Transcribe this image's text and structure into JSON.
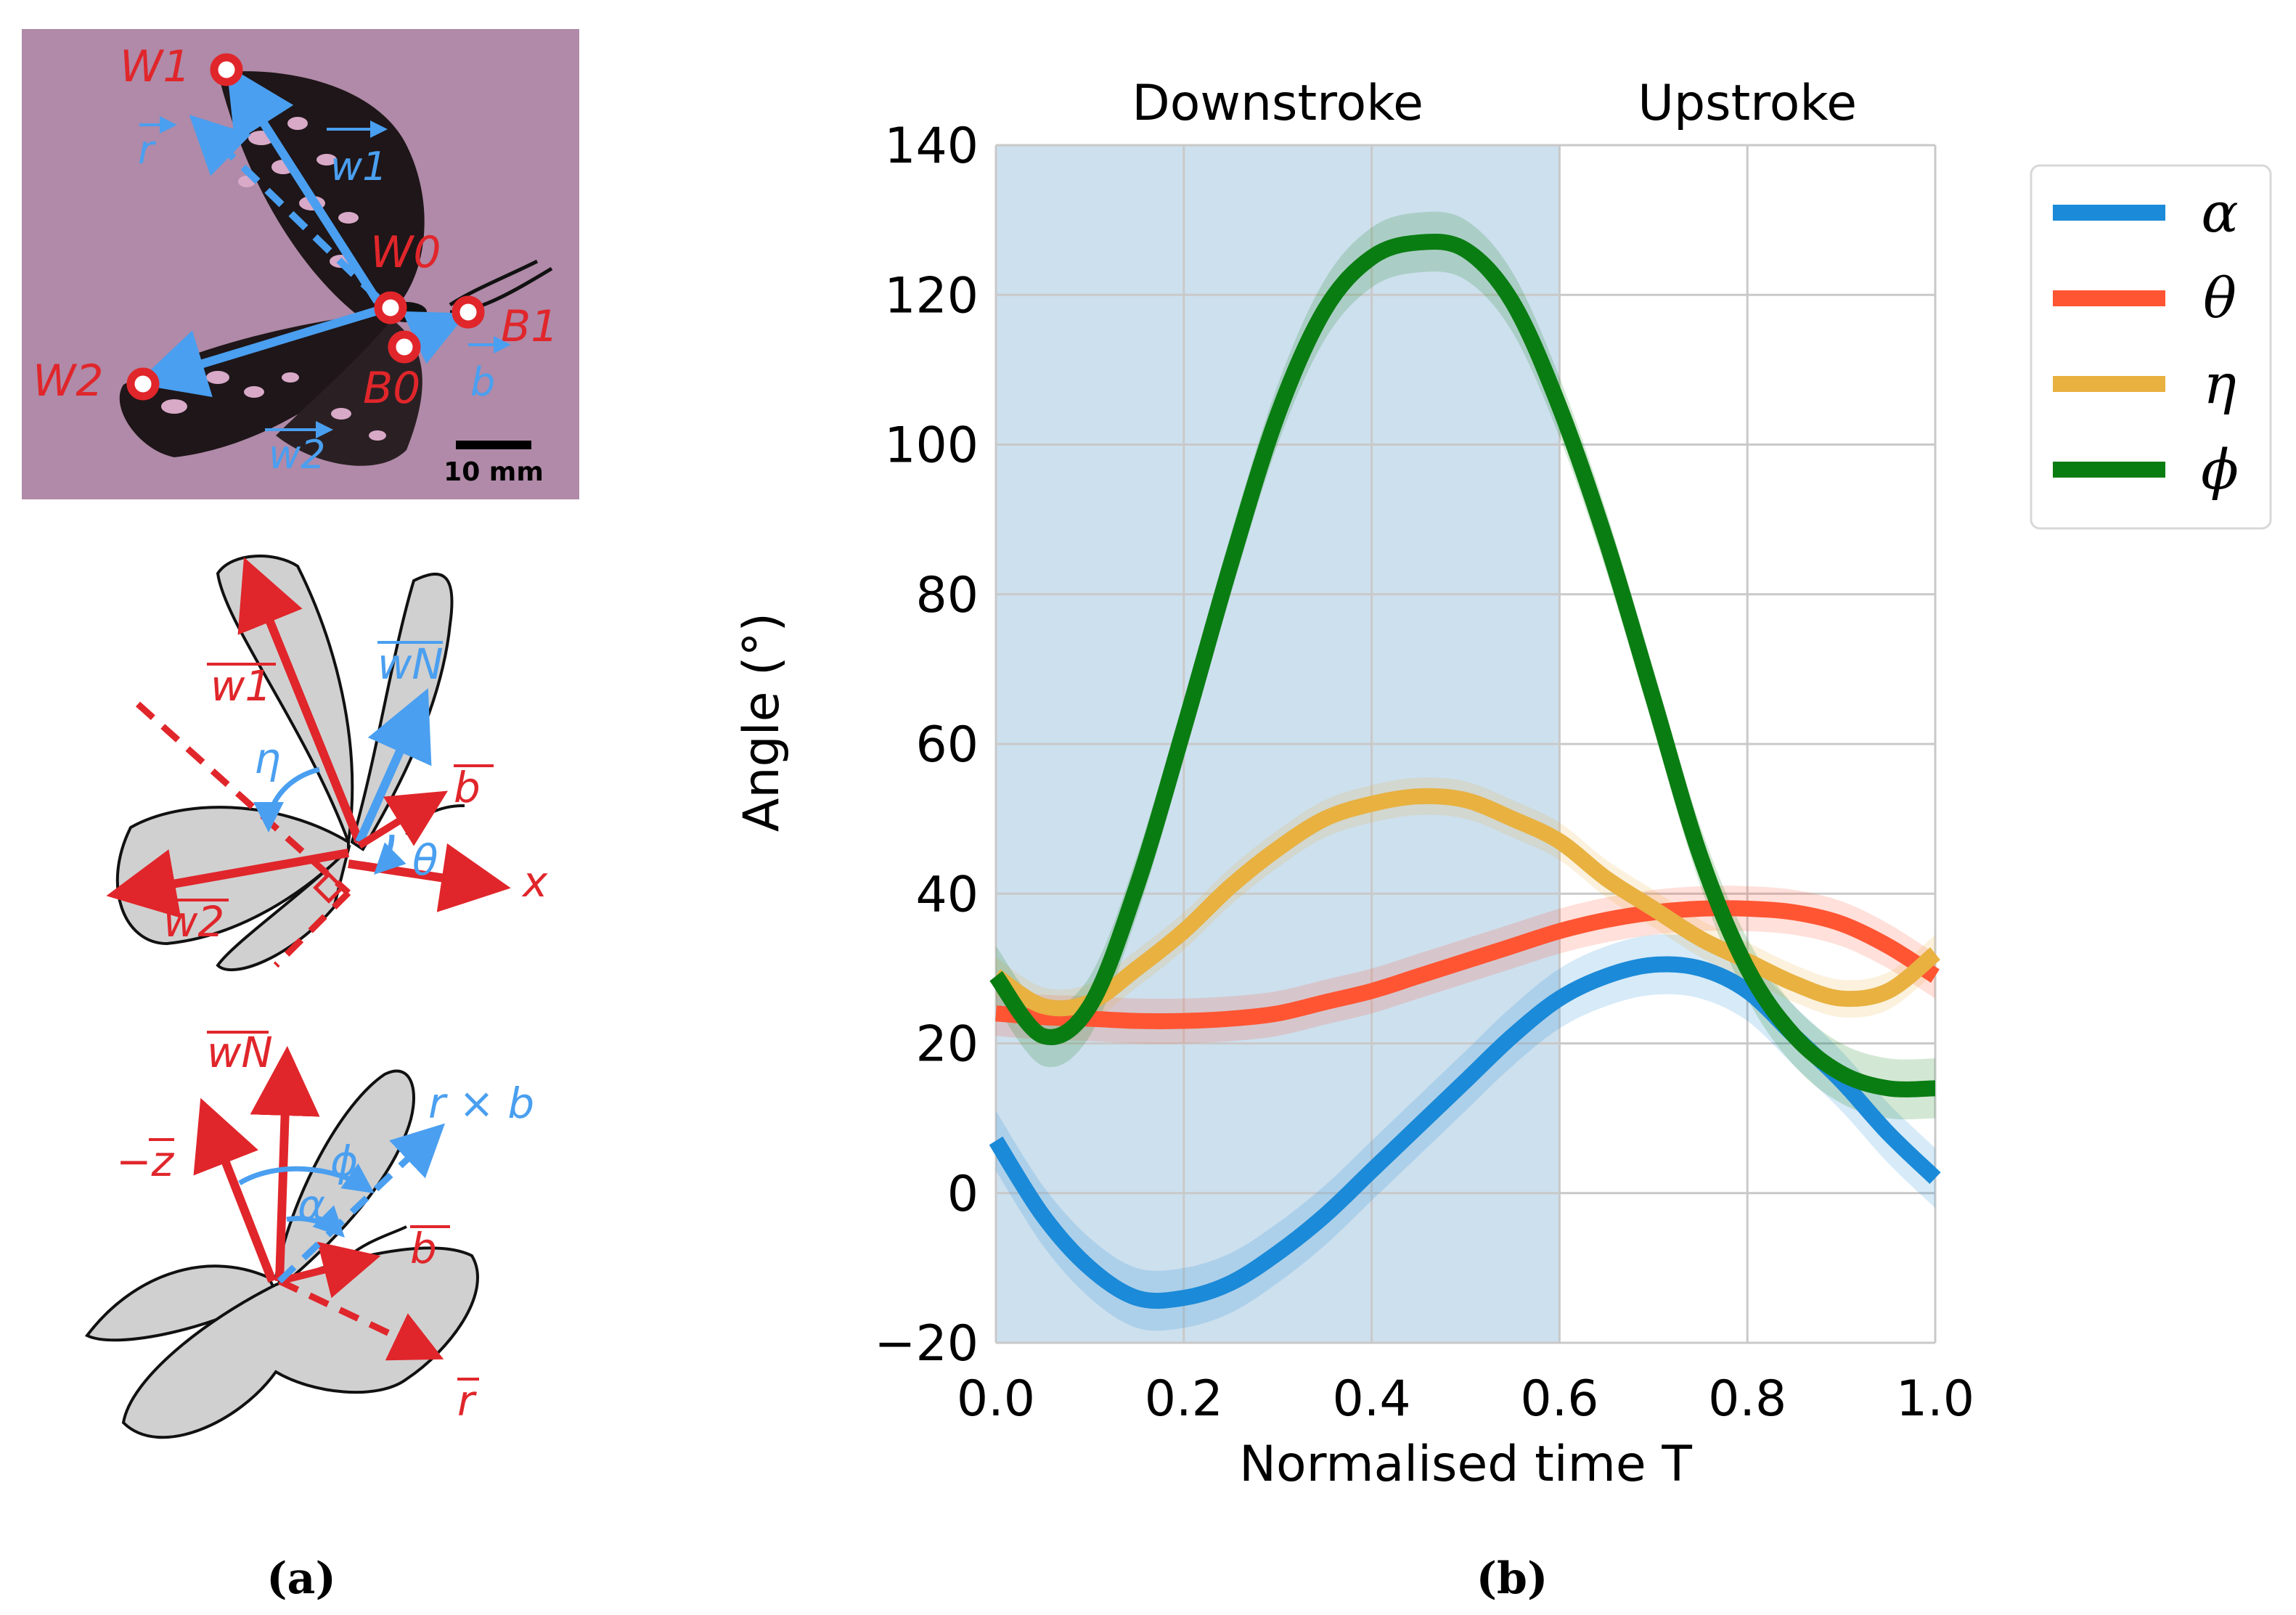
{
  "panel_a": {
    "caption": "(a)",
    "photo": {
      "points": {
        "w1": "W1",
        "w0": "W0",
        "w2": "W2",
        "b0": "B0",
        "b1": "B1"
      },
      "vectors": {
        "r": "r",
        "w1": "w1",
        "w2": "w2",
        "b": "b"
      },
      "scale_bar": "10 mm",
      "bg_color": "#b08aa8"
    },
    "diagram1": {
      "labels": {
        "w1": "w1",
        "wN": "wN",
        "b": "b",
        "w2": "w2",
        "eta": "η",
        "theta": "θ",
        "x": "x"
      }
    },
    "diagram2": {
      "labels": {
        "wN": "wN",
        "minus_z": "−z",
        "r_cross_b": "r × b",
        "phi": "ϕ",
        "alpha": "α",
        "b": "b",
        "r": "r"
      }
    },
    "colors": {
      "red": "#e0262b",
      "blue": "#4a9ff0",
      "wing": "#d0d0d0"
    }
  },
  "panel_b": {
    "caption": "(b)",
    "chart_data": {
      "type": "line",
      "title": "",
      "xlabel": "Normalised time T",
      "ylabel": "Angle (°)",
      "xlim": [
        0.0,
        1.0
      ],
      "ylim": [
        -20,
        140
      ],
      "xticks": [
        "0.0",
        "0.2",
        "0.4",
        "0.6",
        "0.8",
        "1.0"
      ],
      "yticks": [
        "−20",
        "0",
        "20",
        "40",
        "60",
        "80",
        "100",
        "120",
        "140"
      ],
      "grid": true,
      "legend_position": "outside-top-right",
      "phases": [
        {
          "label": "Downstroke",
          "x_start": 0.0,
          "x_end": 0.6,
          "shaded": true,
          "color": "#cde0ee"
        },
        {
          "label": "Upstroke",
          "x_start": 0.6,
          "x_end": 1.0,
          "shaded": false
        }
      ],
      "x": [
        0.0,
        0.05,
        0.1,
        0.15,
        0.2,
        0.25,
        0.3,
        0.35,
        0.4,
        0.45,
        0.5,
        0.55,
        0.6,
        0.65,
        0.7,
        0.75,
        0.8,
        0.85,
        0.9,
        0.95,
        1.0
      ],
      "series": [
        {
          "name": "α",
          "color": "#1b8ad8",
          "band": 4,
          "values": [
            7,
            -3,
            -10,
            -14,
            -14,
            -12,
            -8,
            -3,
            3,
            9,
            15,
            21,
            26,
            29,
            30.5,
            30,
            27,
            21,
            15,
            8,
            2
          ]
        },
        {
          "name": "θ",
          "color": "#ff5533",
          "band": 3,
          "values": [
            24,
            23.5,
            23.3,
            23,
            23,
            23.3,
            24,
            25.5,
            27,
            29,
            31,
            33,
            35,
            36.5,
            37.5,
            38,
            38,
            37.5,
            36,
            33,
            29
          ]
        },
        {
          "name": "η",
          "color": "#e8b140",
          "band": 2.5,
          "values": [
            29,
            25,
            25.5,
            30,
            35,
            41,
            46,
            50,
            52,
            53,
            52.5,
            50,
            47,
            42,
            38,
            34,
            31,
            28,
            26,
            27,
            32
          ]
        },
        {
          "name": "ϕ",
          "color": "#0a7d12",
          "band": 4,
          "values": [
            29,
            21,
            25,
            41,
            62,
            84,
            104,
            118,
            125,
            127,
            126,
            119,
            105,
            87,
            66,
            45,
            30,
            21,
            16,
            14,
            14
          ]
        }
      ]
    }
  }
}
